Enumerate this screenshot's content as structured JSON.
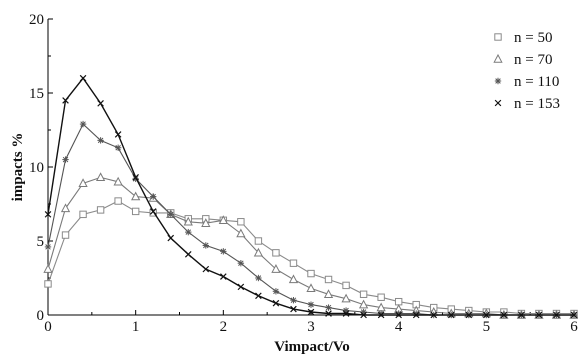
{
  "chart_data": {
    "type": "line",
    "title": "",
    "xlabel": "Vimpact/Vo",
    "ylabel": "impacts %",
    "xlim": [
      0,
      6
    ],
    "ylim": [
      0,
      20
    ],
    "xticks": [
      "0",
      "1",
      "2",
      "3",
      "4",
      "5",
      "6"
    ],
    "yticks": [
      "0",
      "5",
      "10",
      "15",
      "20"
    ],
    "grid": false,
    "legend_position": "top-right",
    "x": [
      0,
      0.2,
      0.4,
      0.6,
      0.8,
      1.0,
      1.2,
      1.4,
      1.6,
      1.8,
      2.0,
      2.2,
      2.4,
      2.6,
      2.8,
      3.0,
      3.2,
      3.4,
      3.6,
      3.8,
      4.0,
      4.2,
      4.4,
      4.6,
      4.8,
      5.0,
      5.2,
      5.4,
      5.6,
      5.8,
      6.0
    ],
    "series": [
      {
        "name": "n = 50",
        "marker": "square",
        "color": "#8a8a8a",
        "values": [
          2.1,
          5.4,
          6.8,
          7.1,
          7.7,
          7.0,
          6.9,
          6.9,
          6.5,
          6.5,
          6.4,
          6.3,
          5.0,
          4.2,
          3.5,
          2.8,
          2.4,
          2.0,
          1.4,
          1.2,
          0.9,
          0.7,
          0.5,
          0.4,
          0.3,
          0.2,
          0.2,
          0.1,
          0.1,
          0.1,
          0.1
        ]
      },
      {
        "name": "n = 70",
        "marker": "triangle",
        "color": "#7a7a7a",
        "values": [
          3.1,
          7.2,
          8.9,
          9.3,
          9.0,
          8.0,
          7.9,
          6.8,
          6.3,
          6.2,
          6.4,
          5.5,
          4.2,
          3.1,
          2.4,
          1.8,
          1.4,
          1.1,
          0.7,
          0.5,
          0.4,
          0.3,
          0.2,
          0.1,
          0.1,
          0.1,
          0.0,
          0.0,
          0.0,
          0.0,
          0.0
        ]
      },
      {
        "name": "n = 110",
        "marker": "star",
        "color": "#555555",
        "values": [
          4.6,
          10.5,
          12.9,
          11.8,
          11.3,
          9.2,
          8.0,
          6.8,
          5.6,
          4.7,
          4.3,
          3.5,
          2.5,
          1.6,
          1.0,
          0.7,
          0.5,
          0.3,
          0.2,
          0.1,
          0.1,
          0.1,
          0.0,
          0.0,
          0.0,
          0.0,
          0.0,
          0.0,
          0.0,
          0.0,
          0.0
        ]
      },
      {
        "name": "n = 153",
        "marker": "cross",
        "color": "#111111",
        "values": [
          6.8,
          14.5,
          16.0,
          14.3,
          12.2,
          9.3,
          7.0,
          5.2,
          4.1,
          3.1,
          2.6,
          1.9,
          1.3,
          0.8,
          0.4,
          0.2,
          0.1,
          0.1,
          0.0,
          0.0,
          0.0,
          0.0,
          0.0,
          0.0,
          0.0,
          0.0,
          0.0,
          0.0,
          0.0,
          0.0,
          0.0
        ]
      }
    ]
  }
}
